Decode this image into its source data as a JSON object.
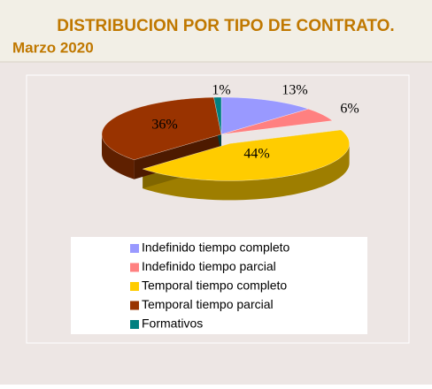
{
  "chart_data": {
    "type": "pie3d",
    "title": "DISTRIBUCION POR TIPO DE CONTRATO.",
    "subtitle": "Marzo 2020",
    "categories": [
      "Indefinido tiempo completo",
      "Indefinido tiempo parcial",
      "Temporal tiempo completo",
      "Temporal tiempo parcial",
      "Formativos"
    ],
    "values": [
      13,
      6,
      44,
      36,
      1
    ],
    "value_labels": [
      "13%",
      "6%",
      "44%",
      "36%",
      "1%"
    ],
    "colors": [
      "#9999ff",
      "#ff8080",
      "#ffcc00",
      "#993300",
      "#008080"
    ],
    "legend": "bottom"
  }
}
